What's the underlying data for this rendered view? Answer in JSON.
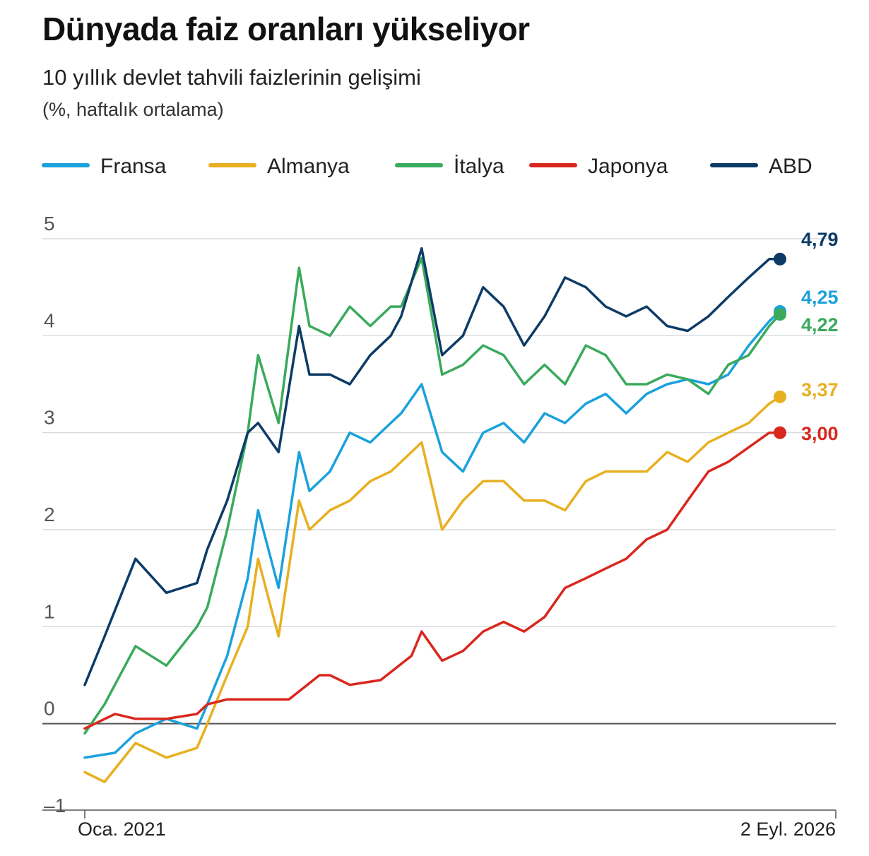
{
  "title": "Dünyada faiz oranları yükseliyor",
  "subtitle": "10 yıllık devlet tahvili faizlerinin gelişimi",
  "note": "(%, haftalık ortalama)",
  "chart_data": {
    "type": "line",
    "xlim": [
      "2021-01",
      "2026-09-02"
    ],
    "ylim": [
      -1,
      5
    ],
    "yticks": [
      {
        "value": 5,
        "label": "5"
      },
      {
        "value": 4,
        "label": "4"
      },
      {
        "value": 3,
        "label": "3"
      },
      {
        "value": 2,
        "label": "2"
      },
      {
        "value": 1,
        "label": "1"
      },
      {
        "value": 0,
        "label": "0"
      },
      {
        "value": -1,
        "label": "–1"
      }
    ],
    "xticks": [
      {
        "x": "2021-01",
        "label": "Oca. 2021"
      },
      {
        "x": "2026-09-02",
        "label": "2 Eyl. 2026"
      }
    ],
    "grid": true,
    "legend": "top",
    "series": [
      {
        "name": "Fransa",
        "color": "#1ba1dc",
        "end_label": "4,25",
        "x": [
          "2021-01",
          "2021-04",
          "2021-06",
          "2021-09",
          "2021-12",
          "2022-01",
          "2022-03",
          "2022-05",
          "2022-06",
          "2022-08",
          "2022-10",
          "2022-11",
          "2023-01",
          "2023-03",
          "2023-05",
          "2023-07",
          "2023-08",
          "2023-10",
          "2023-12",
          "2024-02",
          "2024-04",
          "2024-06",
          "2024-08",
          "2024-10",
          "2024-12",
          "2025-02",
          "2025-04",
          "2025-06",
          "2025-08",
          "2025-10",
          "2025-12",
          "2026-02",
          "2026-04",
          "2026-06",
          "2026-08",
          "2026-09-02"
        ],
        "y": [
          -0.35,
          -0.3,
          -0.1,
          0.05,
          -0.05,
          0.2,
          0.7,
          1.5,
          2.2,
          1.4,
          2.8,
          2.4,
          2.6,
          3.0,
          2.9,
          3.1,
          3.2,
          3.5,
          2.8,
          2.6,
          3.0,
          3.1,
          2.9,
          3.2,
          3.1,
          3.3,
          3.4,
          3.2,
          3.4,
          3.5,
          3.55,
          3.5,
          3.6,
          3.9,
          4.15,
          4.25
        ]
      },
      {
        "name": "Almanya",
        "color": "#e8b020",
        "end_label": "3,37",
        "x": [
          "2021-01",
          "2021-03",
          "2021-06",
          "2021-09",
          "2021-12",
          "2022-01",
          "2022-03",
          "2022-05",
          "2022-06",
          "2022-08",
          "2022-10",
          "2022-11",
          "2023-01",
          "2023-03",
          "2023-05",
          "2023-07",
          "2023-08",
          "2023-10",
          "2023-12",
          "2024-02",
          "2024-04",
          "2024-06",
          "2024-08",
          "2024-10",
          "2024-12",
          "2025-02",
          "2025-04",
          "2025-06",
          "2025-08",
          "2025-10",
          "2025-12",
          "2026-02",
          "2026-04",
          "2026-06",
          "2026-08",
          "2026-09-02"
        ],
        "y": [
          -0.5,
          -0.6,
          -0.2,
          -0.35,
          -0.25,
          0.0,
          0.5,
          1.0,
          1.7,
          0.9,
          2.3,
          2.0,
          2.2,
          2.3,
          2.5,
          2.6,
          2.7,
          2.9,
          2.0,
          2.3,
          2.5,
          2.5,
          2.3,
          2.3,
          2.2,
          2.5,
          2.6,
          2.6,
          2.6,
          2.8,
          2.7,
          2.9,
          3.0,
          3.1,
          3.3,
          3.37
        ]
      },
      {
        "name": "İtalya",
        "color": "#3aaa5c",
        "end_label": "4,22",
        "x": [
          "2021-01",
          "2021-03",
          "2021-06",
          "2021-09",
          "2021-12",
          "2022-01",
          "2022-03",
          "2022-05",
          "2022-06",
          "2022-08",
          "2022-10",
          "2022-11",
          "2023-01",
          "2023-03",
          "2023-05",
          "2023-07",
          "2023-08",
          "2023-10",
          "2023-12",
          "2024-02",
          "2024-04",
          "2024-06",
          "2024-08",
          "2024-10",
          "2024-12",
          "2025-02",
          "2025-04",
          "2025-06",
          "2025-08",
          "2025-10",
          "2025-12",
          "2026-02",
          "2026-04",
          "2026-06",
          "2026-08",
          "2026-09-02"
        ],
        "y": [
          -0.1,
          0.2,
          0.8,
          0.6,
          1.0,
          1.2,
          2.0,
          3.0,
          3.8,
          3.1,
          4.7,
          4.1,
          4.0,
          4.3,
          4.1,
          4.3,
          4.3,
          4.8,
          3.6,
          3.7,
          3.9,
          3.8,
          3.5,
          3.7,
          3.5,
          3.9,
          3.8,
          3.5,
          3.5,
          3.6,
          3.55,
          3.4,
          3.7,
          3.8,
          4.1,
          4.22
        ]
      },
      {
        "name": "Japonya",
        "color": "#d9271d",
        "end_label": "3,00",
        "x": [
          "2021-01",
          "2021-04",
          "2021-06",
          "2021-09",
          "2021-12",
          "2022-01",
          "2022-03",
          "2022-06",
          "2022-09",
          "2022-12",
          "2023-01",
          "2023-03",
          "2023-06",
          "2023-09",
          "2023-10",
          "2023-12",
          "2024-02",
          "2024-04",
          "2024-06",
          "2024-08",
          "2024-10",
          "2024-12",
          "2025-02",
          "2025-04",
          "2025-06",
          "2025-08",
          "2025-10",
          "2025-12",
          "2026-02",
          "2026-04",
          "2026-06",
          "2026-08",
          "2026-09-02"
        ],
        "y": [
          -0.05,
          0.1,
          0.05,
          0.05,
          0.1,
          0.2,
          0.25,
          0.25,
          0.25,
          0.5,
          0.5,
          0.4,
          0.45,
          0.7,
          0.95,
          0.65,
          0.75,
          0.95,
          1.05,
          0.95,
          1.1,
          1.4,
          1.5,
          1.6,
          1.7,
          1.9,
          2.0,
          2.3,
          2.6,
          2.7,
          2.85,
          3.0,
          3.0
        ]
      },
      {
        "name": "ABD",
        "color": "#0d3b66",
        "end_label": "4,79",
        "x": [
          "2021-01",
          "2021-03",
          "2021-06",
          "2021-09",
          "2021-12",
          "2022-01",
          "2022-03",
          "2022-05",
          "2022-06",
          "2022-08",
          "2022-10",
          "2022-11",
          "2023-01",
          "2023-03",
          "2023-05",
          "2023-07",
          "2023-08",
          "2023-10",
          "2023-12",
          "2024-02",
          "2024-04",
          "2024-06",
          "2024-08",
          "2024-10",
          "2024-12",
          "2025-02",
          "2025-04",
          "2025-06",
          "2025-08",
          "2025-10",
          "2025-12",
          "2026-02",
          "2026-04",
          "2026-06",
          "2026-08",
          "2026-09-02"
        ],
        "y": [
          0.4,
          0.9,
          1.7,
          1.35,
          1.45,
          1.8,
          2.3,
          3.0,
          3.1,
          2.8,
          4.1,
          3.6,
          3.6,
          3.5,
          3.8,
          4.0,
          4.2,
          4.9,
          3.8,
          4.0,
          4.5,
          4.3,
          3.9,
          4.2,
          4.6,
          4.5,
          4.3,
          4.2,
          4.3,
          4.1,
          4.05,
          4.2,
          4.4,
          4.6,
          4.79,
          4.79
        ]
      }
    ]
  }
}
